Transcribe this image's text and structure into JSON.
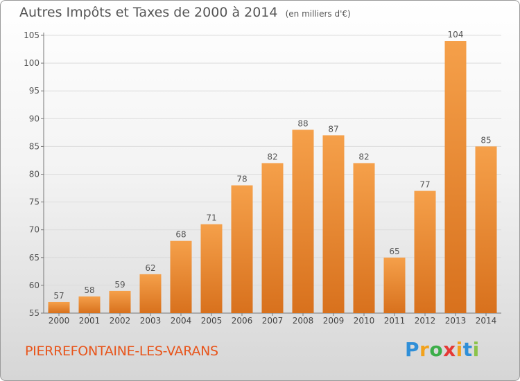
{
  "title": "Autres Impôts et Taxes de 2000 à 2014",
  "unit": "(en milliers d'€)",
  "commune": "PIERREFONTAINE-LES-VARANS",
  "logo": {
    "letters": [
      "P",
      "r",
      "o",
      "x",
      "i",
      "t",
      "i"
    ],
    "colors": [
      "#2f8fd8",
      "#f2a21c",
      "#3cae49",
      "#e53935",
      "#f2a21c",
      "#2f8fd8",
      "#8bc34a"
    ]
  },
  "colors": {
    "bar_light": "#f5a04a",
    "bar_dark": "#d8711d",
    "text": "#555555",
    "commune": "#e8541a"
  },
  "chart_data": {
    "type": "bar",
    "categories": [
      "2000",
      "2001",
      "2002",
      "2003",
      "2004",
      "2005",
      "2006",
      "2007",
      "2008",
      "2009",
      "2010",
      "2011",
      "2012",
      "2013",
      "2014"
    ],
    "values": [
      57,
      58,
      59,
      62,
      68,
      71,
      78,
      82,
      88,
      87,
      82,
      65,
      77,
      104,
      85
    ],
    "ylim": [
      55,
      105
    ],
    "yticks": [
      55,
      60,
      65,
      70,
      75,
      80,
      85,
      90,
      95,
      100,
      105
    ],
    "grid": true
  }
}
